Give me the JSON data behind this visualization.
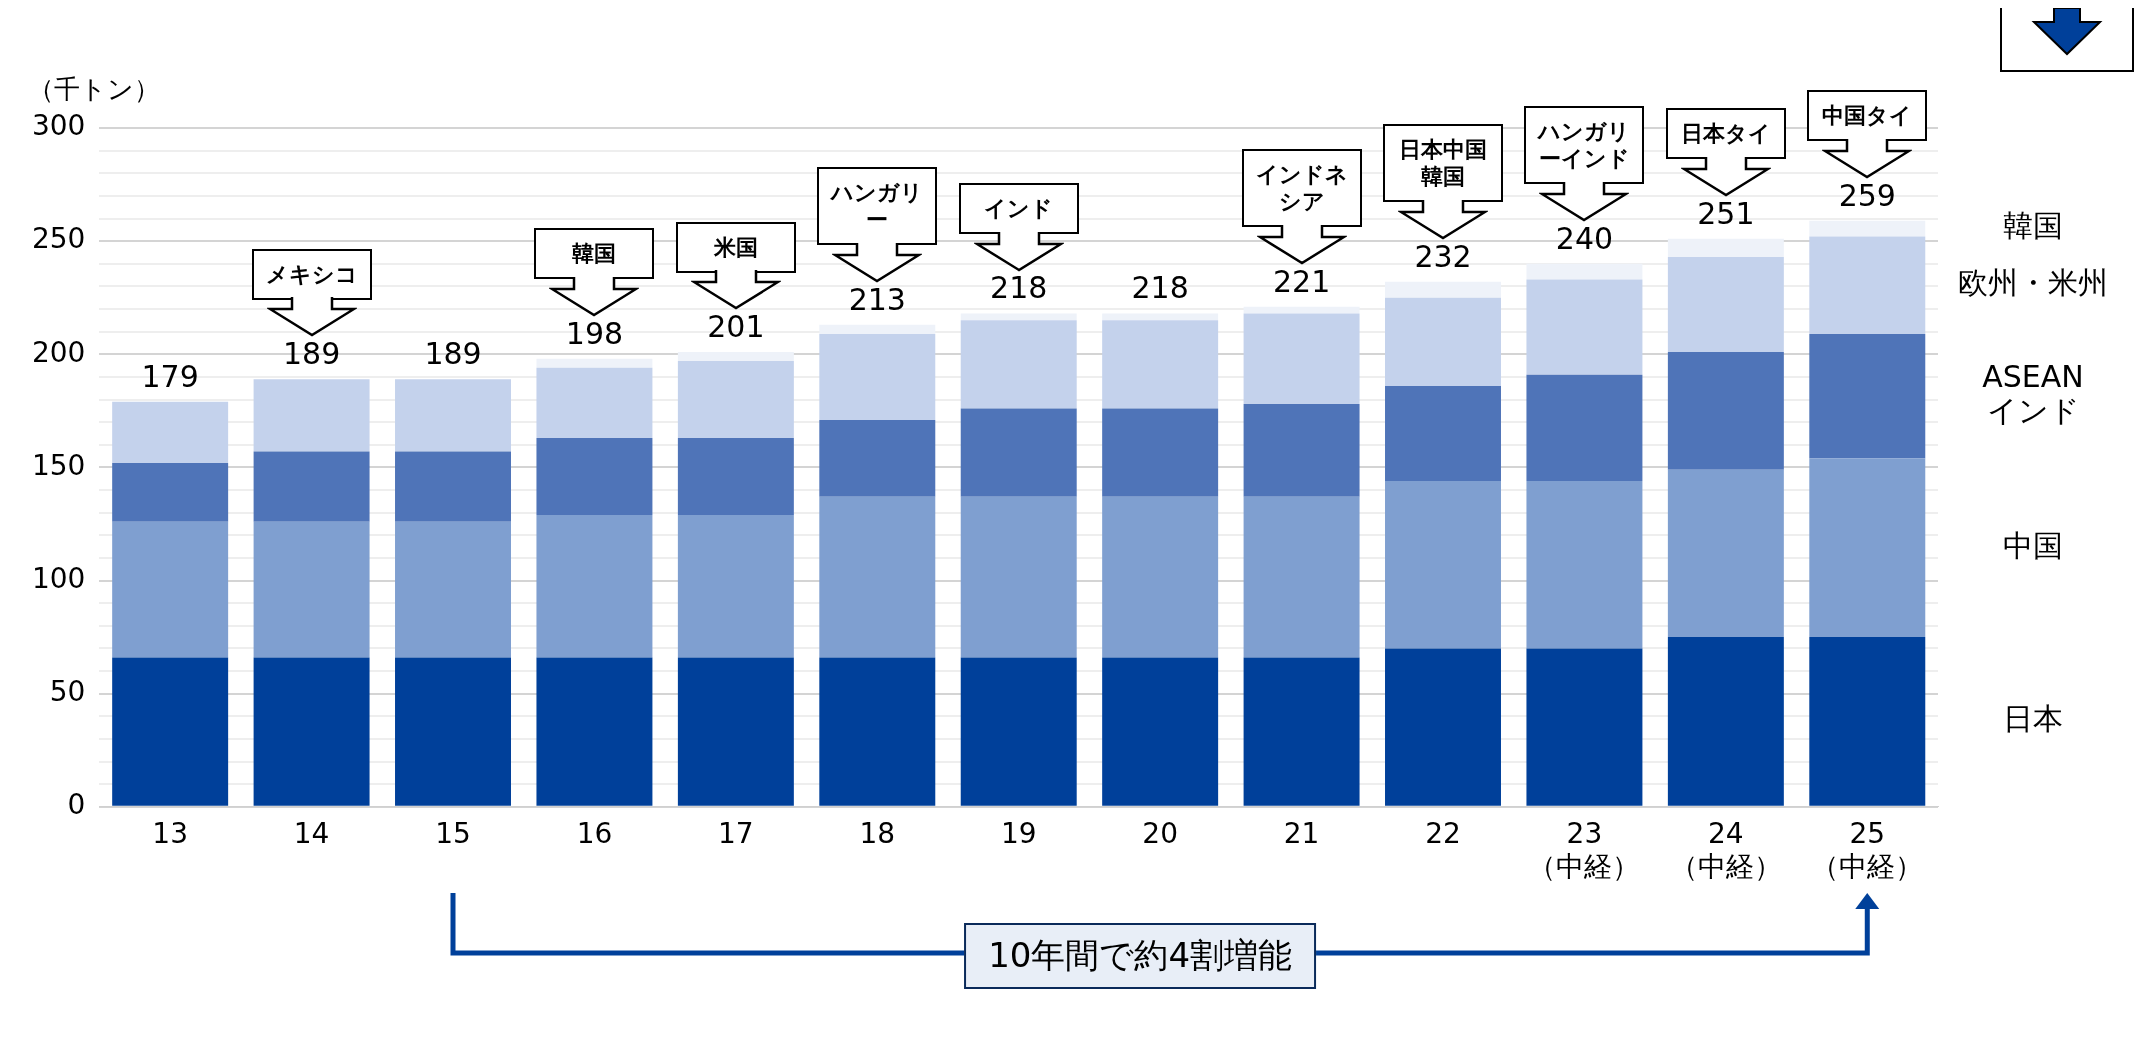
{
  "chart_data": {
    "type": "bar",
    "stacked": true,
    "ylabel": "（千トン）",
    "categories": [
      "13",
      "14",
      "15",
      "16",
      "17",
      "18",
      "19",
      "20",
      "21",
      "22",
      "23\n（中経）",
      "24\n（中経）",
      "25\n（中経）"
    ],
    "series": [
      {
        "name": "日本",
        "color": "#00409a",
        "values": [
          66,
          66,
          66,
          66,
          66,
          66,
          66,
          66,
          66,
          70,
          70,
          75,
          75
        ]
      },
      {
        "name": "中国",
        "color": "#7f9fd0",
        "values": [
          60,
          60,
          60,
          63,
          63,
          71,
          71,
          71,
          71,
          74,
          74,
          74,
          79
        ]
      },
      {
        "name": "ASEAN インド",
        "color": "#4f74b8",
        "values": [
          26,
          31,
          31,
          34,
          34,
          34,
          39,
          39,
          41,
          42,
          47,
          52,
          55
        ]
      },
      {
        "name": "欧州・米州",
        "color": "#c4d2ec",
        "values": [
          27,
          32,
          32,
          31,
          34,
          38,
          39,
          39,
          40,
          39,
          42,
          42,
          43
        ]
      },
      {
        "name": "韓国",
        "color": "#eef2f9",
        "values": [
          null,
          null,
          null,
          4,
          4,
          4,
          3,
          3,
          3,
          7,
          7,
          8,
          7
        ]
      }
    ],
    "totals": [
      "179",
      "189",
      "189",
      "198",
      "201",
      "213",
      "218",
      "218",
      "221",
      "232",
      "240",
      "251",
      "259"
    ],
    "ylim": [
      0,
      300
    ],
    "yticks": [
      0,
      {
        "value": 10,
        "label": null
      },
      {
        "value": 20,
        "label": null
      },
      {
        "value": 30,
        "label": null
      },
      {
        "value": 40,
        "label": null
      },
      50,
      {
        "value": 60,
        "label": null
      },
      {
        "value": 70,
        "label": null
      },
      {
        "value": 80,
        "label": null
      },
      {
        "value": 90,
        "label": null
      },
      100,
      {
        "value": 110,
        "label": null
      },
      {
        "value": 120,
        "label": null
      },
      {
        "value": 130,
        "label": null
      },
      {
        "value": 140,
        "label": null
      },
      150,
      {
        "value": 160,
        "label": null
      },
      {
        "value": 170,
        "label": null
      },
      {
        "value": 180,
        "label": null
      },
      {
        "value": 190,
        "label": null
      },
      200,
      {
        "value": 210,
        "label": null
      },
      {
        "value": 220,
        "label": null
      },
      {
        "value": 230,
        "label": null
      },
      {
        "value": 240,
        "label": null
      },
      250,
      {
        "value": 260,
        "label": null
      },
      {
        "value": 270,
        "label": null
      },
      {
        "value": 280,
        "label": null
      },
      {
        "value": 290,
        "label": null
      },
      300
    ],
    "grid": "y",
    "legend": "right",
    "annotations": [
      "メキシコ",
      "韓国",
      "米国",
      "ハンガリー",
      "インド",
      "インドネシア",
      "日本中国韓国",
      "ハンガリーインド",
      "日本タイ",
      "中国タイ",
      "10年間で約4割増能"
    ]
  }
}
